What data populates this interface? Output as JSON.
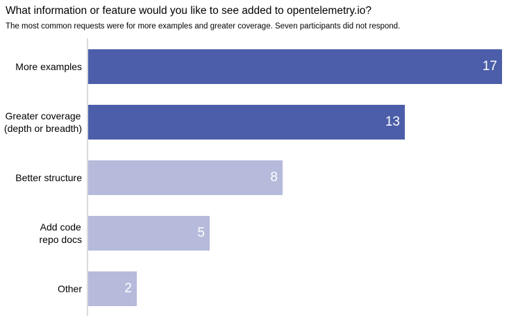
{
  "header": {
    "title": "What information or feature would you like to see added to opentelemetry.io?",
    "subtitle": "The most common requests were for more examples and greater coverage. Seven participants did not respond."
  },
  "chart_data": {
    "type": "bar",
    "orientation": "horizontal",
    "title": "What information or feature would you like to see added to opentelemetry.io?",
    "subtitle": "The most common requests were for more examples and greater coverage. Seven participants did not respond.",
    "categories": [
      "More examples",
      "Greater coverage (depth or breadth)",
      "Better structure",
      "Add code repo docs",
      "Other"
    ],
    "category_label_lines": [
      [
        "More examples"
      ],
      [
        "Greater coverage",
        "(depth or breadth)"
      ],
      [
        "Better structure"
      ],
      [
        "Add code",
        "repo docs"
      ],
      [
        "Other"
      ]
    ],
    "values": [
      17,
      13,
      8,
      5,
      2
    ],
    "value_labels": [
      "17",
      "13",
      "8",
      "5",
      "2"
    ],
    "value_label_position": "inside-end",
    "value_label_color": "#FFFFFF",
    "bar_colors": [
      "#4C5EA9",
      "#4C5EA9",
      "#B6BBDC",
      "#B6BBDC",
      "#B6BBDC"
    ],
    "axis_line_color": "#D9D9D9",
    "xlim": [
      0,
      17.7
    ],
    "grid": false,
    "legend": "none",
    "xlabel": "",
    "ylabel": ""
  }
}
